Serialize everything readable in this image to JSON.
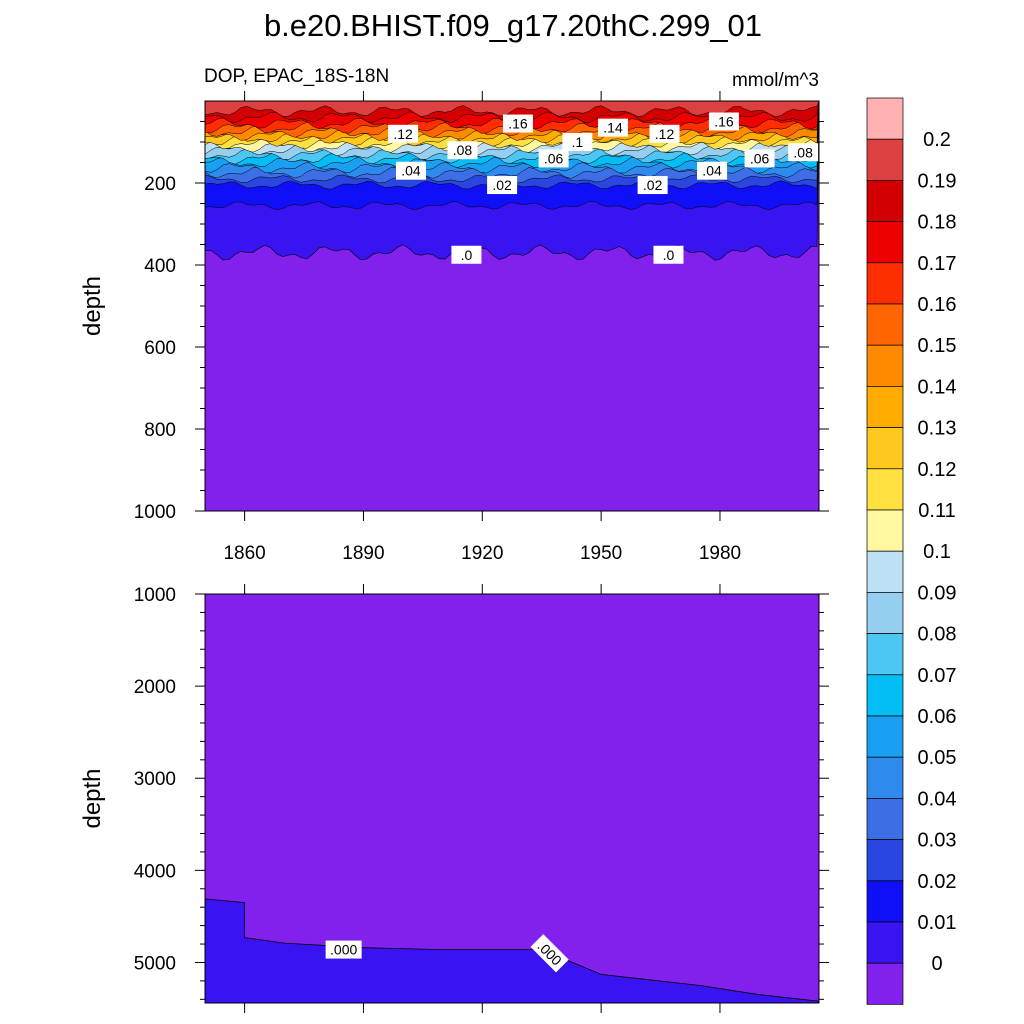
{
  "chart_data": {
    "type": "contour",
    "title": "b.e20.BHIST.f09_g17.20thC.299_01",
    "left_label": "DOP, EPAC_18S-18N",
    "units": "mmol/m^3",
    "x_ticks": [
      "1860",
      "1890",
      "1920",
      "1950",
      "1980"
    ],
    "x_range": [
      1850,
      2005
    ],
    "colorbar": {
      "labels": [
        "0",
        "0.01",
        "0.02",
        "0.03",
        "0.04",
        "0.05",
        "0.06",
        "0.07",
        "0.08",
        "0.09",
        "0.1",
        "0.11",
        "0.12",
        "0.13",
        "0.14",
        "0.15",
        "0.16",
        "0.17",
        "0.18",
        "0.19",
        "0.2"
      ],
      "colors": [
        "#8220ee",
        "#3a14f0",
        "#1010f8",
        "#2a46e0",
        "#3d6ee6",
        "#2f8aee",
        "#1aa0f2",
        "#02bef4",
        "#4ec6f4",
        "#96cef0",
        "#bee0f4",
        "#fff8a0",
        "#ffe040",
        "#ffc81e",
        "#ffab00",
        "#ff8a00",
        "#ff6400",
        "#ff2e00",
        "#ee0000",
        "#d20000",
        "#dc4040",
        "#ffb0b0"
      ]
    },
    "panels": [
      {
        "name": "upper",
        "ylabel": "depth",
        "y_range": [
          0,
          1000
        ],
        "y_ticks": [
          "200",
          "400",
          "600",
          "800",
          "1000"
        ],
        "y_tick_values": [
          200,
          400,
          600,
          800,
          1000
        ],
        "zero_contour_depth": 370,
        "level_depths": [
          {
            "value": 0.01,
            "depth": 255
          },
          {
            "value": 0.02,
            "depth": 205
          },
          {
            "value": 0.03,
            "depth": 190
          },
          {
            "value": 0.04,
            "depth": 175
          },
          {
            "value": 0.05,
            "depth": 163
          },
          {
            "value": 0.06,
            "depth": 150
          },
          {
            "value": 0.07,
            "depth": 140
          },
          {
            "value": 0.08,
            "depth": 130
          },
          {
            "value": 0.09,
            "depth": 120
          },
          {
            "value": 0.1,
            "depth": 112
          },
          {
            "value": 0.11,
            "depth": 104
          },
          {
            "value": 0.12,
            "depth": 97
          },
          {
            "value": 0.13,
            "depth": 90
          },
          {
            "value": 0.14,
            "depth": 83
          },
          {
            "value": 0.15,
            "depth": 75
          },
          {
            "value": 0.16,
            "depth": 66
          },
          {
            "value": 0.17,
            "depth": 55
          },
          {
            "value": 0.18,
            "depth": 40
          },
          {
            "value": 0.19,
            "depth": 25
          }
        ],
        "contour_labels": [
          {
            "text": ".12",
            "year": 1900,
            "depth": 80
          },
          {
            "text": ".16",
            "year": 1929,
            "depth": 55
          },
          {
            "text": ".14",
            "year": 1953,
            "depth": 65
          },
          {
            "text": ".1",
            "year": 1944,
            "depth": 100
          },
          {
            "text": ".12",
            "year": 1966,
            "depth": 80
          },
          {
            "text": ".16",
            "year": 1981,
            "depth": 50
          },
          {
            "text": ".08",
            "year": 1915,
            "depth": 120
          },
          {
            "text": ".06",
            "year": 1938,
            "depth": 140
          },
          {
            "text": ".04",
            "year": 1902,
            "depth": 170
          },
          {
            "text": ".02",
            "year": 1925,
            "depth": 205
          },
          {
            "text": ".02",
            "year": 1963,
            "depth": 205
          },
          {
            "text": ".04",
            "year": 1978,
            "depth": 170
          },
          {
            "text": ".06",
            "year": 1990,
            "depth": 140
          },
          {
            "text": ".08",
            "year": 2001,
            "depth": 125
          },
          {
            "text": ".0",
            "year": 1916,
            "depth": 375
          },
          {
            "text": ".0",
            "year": 1967,
            "depth": 375
          }
        ]
      },
      {
        "name": "lower",
        "ylabel": "depth",
        "y_range": [
          1000,
          5440
        ],
        "y_ticks": [
          "1000",
          "2000",
          "3000",
          "4000",
          "5000"
        ],
        "y_tick_values": [
          1000,
          2000,
          3000,
          4000,
          5000
        ],
        "zero_contour": [
          {
            "year": 1850,
            "depth": 4310
          },
          {
            "year": 1860,
            "depth": 4350
          },
          {
            "year": 1860,
            "depth": 4730
          },
          {
            "year": 1870,
            "depth": 4790
          },
          {
            "year": 1890,
            "depth": 4840
          },
          {
            "year": 1910,
            "depth": 4860
          },
          {
            "year": 1935,
            "depth": 4860
          },
          {
            "year": 1950,
            "depth": 5130
          },
          {
            "year": 1975,
            "depth": 5250
          },
          {
            "year": 1990,
            "depth": 5350
          },
          {
            "year": 2005,
            "depth": 5420
          }
        ],
        "contour_labels": [
          {
            "text": ".000",
            "year": 1885,
            "depth": 4860
          },
          {
            "text": ".000",
            "year": 1937,
            "depth": 4900
          }
        ]
      }
    ]
  }
}
